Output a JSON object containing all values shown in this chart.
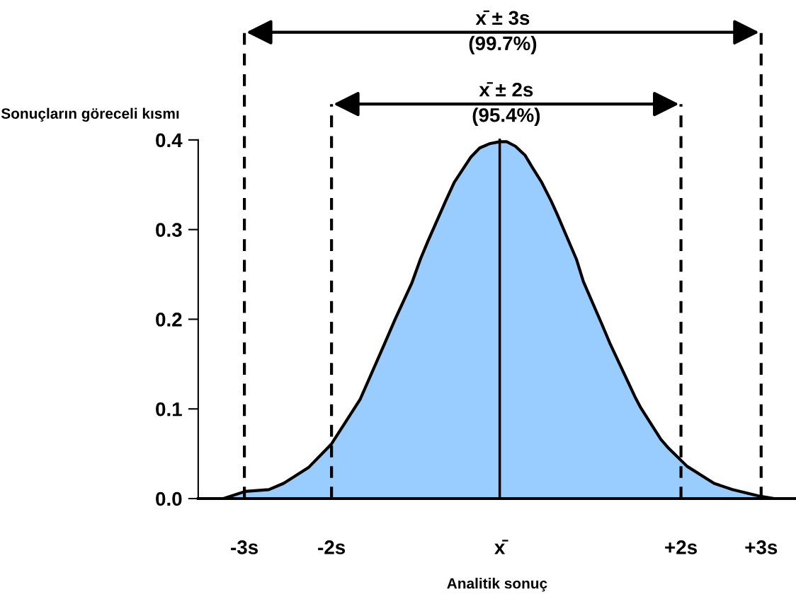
{
  "chart_data": {
    "type": "area",
    "xlabel": "Analitik sonuç",
    "ylabel": "Sonuçların göreceli kısmı",
    "series": [
      {
        "color": "#99ccff",
        "x": [
          -3.46,
          -3.17,
          -2.92,
          -2.65,
          -2.48,
          -2.19,
          -1.93,
          -1.6,
          -1.32,
          -1.2,
          -1.01,
          -0.91,
          -0.82,
          -0.62,
          -0.52,
          -0.33,
          -0.23,
          -0.11,
          0,
          0.08,
          0.18,
          0.29,
          0.37,
          0.48,
          0.59,
          0.66,
          0.88,
          0.96,
          1.17,
          1.27,
          1.56,
          1.62,
          1.85,
          1.94,
          2.15,
          2.46,
          2.67,
          2.97,
          3.15,
          3.4
        ],
        "values": [
          0,
          0,
          0.008,
          0.01,
          0.017,
          0.035,
          0.061,
          0.111,
          0.173,
          0.2,
          0.24,
          0.267,
          0.288,
          0.332,
          0.353,
          0.381,
          0.391,
          0.396,
          0.398,
          0.398,
          0.393,
          0.383,
          0.37,
          0.353,
          0.332,
          0.317,
          0.267,
          0.242,
          0.195,
          0.172,
          0.112,
          0.101,
          0.066,
          0.056,
          0.036,
          0.017,
          0.01,
          0.003,
          0,
          0
        ]
      }
    ],
    "xlim": [
      -3.46,
      3.4
    ],
    "xticks": [
      {
        "value": -2.93,
        "label": "-3s"
      },
      {
        "value": -1.93,
        "label": "-2s"
      },
      {
        "value": 0,
        "label": "x̄"
      },
      {
        "value": 2.08,
        "label": "+2s"
      },
      {
        "value": 3.0,
        "label": "+3s"
      }
    ],
    "ylim": [
      0,
      0.4
    ],
    "yticks": [
      {
        "value": 0,
        "label": "0.0"
      },
      {
        "value": 0.1,
        "label": "0.1"
      },
      {
        "value": 0.2,
        "label": "0.2"
      },
      {
        "value": 0.3,
        "label": "0.3"
      },
      {
        "value": 0.4,
        "label": "0.4"
      }
    ],
    "ref_lines": [
      {
        "axis": "x",
        "value": -2.93,
        "line_style": "dashed"
      },
      {
        "axis": "x",
        "value": -1.93,
        "line_style": "dashed"
      },
      {
        "axis": "x",
        "value": 0,
        "line_style": "solid"
      },
      {
        "axis": "x",
        "value": 2.08,
        "line_style": "dashed"
      },
      {
        "axis": "x",
        "value": 3.0,
        "line_style": "dashed"
      }
    ],
    "annotations": [
      "x̄ ± 3s\n(99.7%)",
      "x̄ ± 2s\n(95.4%)"
    ],
    "grid": false
  }
}
